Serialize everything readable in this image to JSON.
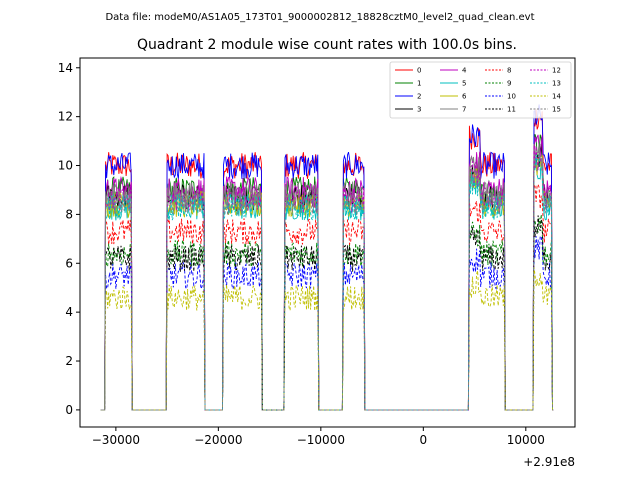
{
  "suptitle": "Data file: modeM0/AS1A05_173T01_9000002812_18828cztM0_level2_quad_clean.evt",
  "chart_data": {
    "type": "line",
    "title": "Quadrant 2 module wise count rates with 100.0s bins.",
    "xlabel": "",
    "ylabel": "",
    "x_offset_label": "+2.91e8",
    "xlim": [
      -33500,
      14800
    ],
    "ylim": [
      -0.7,
      14.4
    ],
    "x_ticks": [
      -30000,
      -20000,
      -10000,
      0,
      10000
    ],
    "x_tick_labels": [
      "−30000",
      "−20000",
      "−10000",
      "0",
      "10000"
    ],
    "y_ticks": [
      0,
      2,
      4,
      6,
      8,
      10,
      12,
      14
    ],
    "y_tick_labels": [
      "0",
      "2",
      "4",
      "6",
      "8",
      "10",
      "12",
      "14"
    ],
    "legend_position": "top-right",
    "on_segments": [
      {
        "start": -31000,
        "end": -28500
      },
      {
        "start": -25000,
        "end": -21400
      },
      {
        "start": -19500,
        "end": -15800
      },
      {
        "start": -13500,
        "end": -10300
      },
      {
        "start": -7800,
        "end": -5800
      },
      {
        "start": 4500,
        "end": 7900
      },
      {
        "start": 10800,
        "end": 12500
      }
    ],
    "off_value": 0,
    "series": [
      {
        "name": "0",
        "color": "#ff0000",
        "dashed": false,
        "level": 10.0
      },
      {
        "name": "1",
        "color": "#008000",
        "dashed": false,
        "level": 9.0
      },
      {
        "name": "2",
        "color": "#0000ff",
        "dashed": false,
        "level": 10.0
      },
      {
        "name": "3",
        "color": "#000000",
        "dashed": false,
        "level": 8.7
      },
      {
        "name": "4",
        "color": "#bf00bf",
        "dashed": false,
        "level": 9.0
      },
      {
        "name": "5",
        "color": "#00bfbf",
        "dashed": false,
        "level": 8.3
      },
      {
        "name": "6",
        "color": "#bfbf00",
        "dashed": false,
        "level": 8.4
      },
      {
        "name": "7",
        "color": "#808080",
        "dashed": false,
        "level": 8.8
      },
      {
        "name": "8",
        "color": "#ff0000",
        "dashed": true,
        "level": 7.3
      },
      {
        "name": "9",
        "color": "#008000",
        "dashed": true,
        "level": 6.4
      },
      {
        "name": "10",
        "color": "#0000ff",
        "dashed": true,
        "level": 5.5
      },
      {
        "name": "11",
        "color": "#000000",
        "dashed": true,
        "level": 6.2
      },
      {
        "name": "12",
        "color": "#bf00bf",
        "dashed": true,
        "level": 8.6
      },
      {
        "name": "13",
        "color": "#00bfbf",
        "dashed": true,
        "level": 8.3
      },
      {
        "name": "14",
        "color": "#bfbf00",
        "dashed": true,
        "level": 4.6
      },
      {
        "name": "15",
        "color": "#808080",
        "dashed": true,
        "level": 8.5
      }
    ]
  }
}
